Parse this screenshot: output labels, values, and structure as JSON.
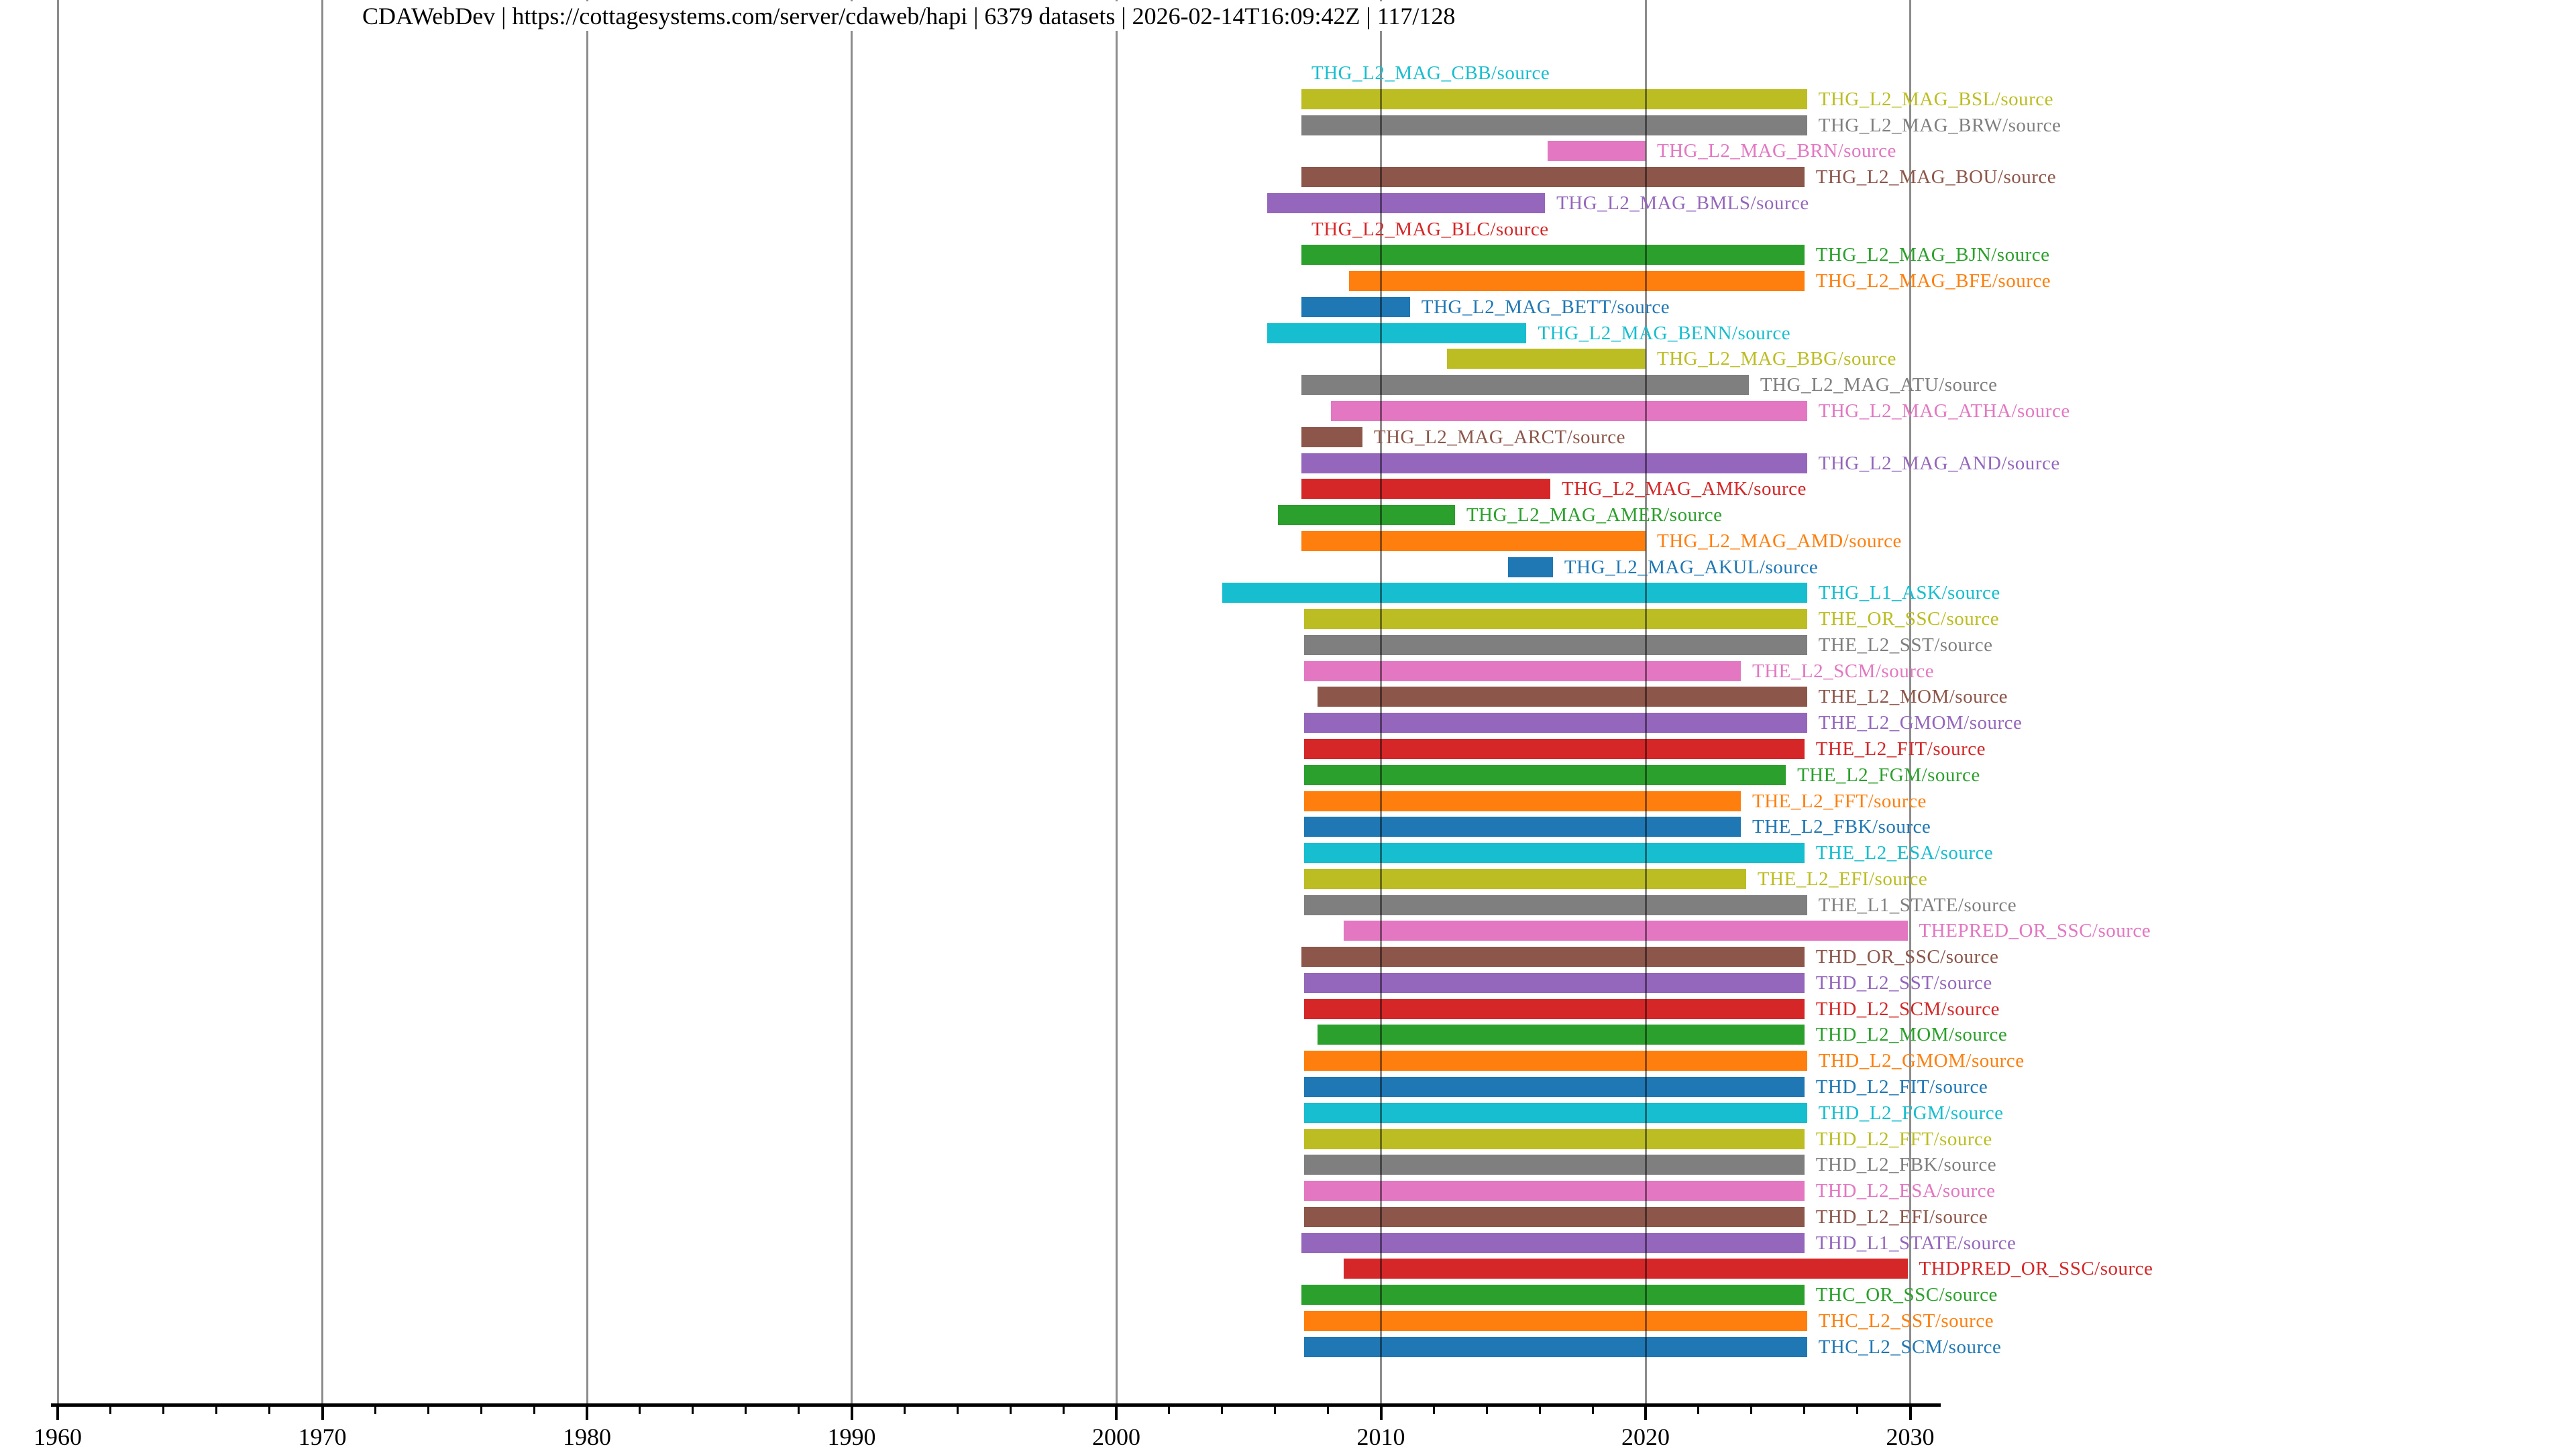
{
  "header": {
    "title": "CDAWebDev | https://cottagesystems.com/server/cdaweb/hapi | 6379 datasets | 2026-02-14T16:09:42Z | 117/128",
    "server_name": "CDAWebDev",
    "server_url": "https://cottagesystems.com/server/cdaweb/hapi",
    "dataset_count_text": "6379 datasets",
    "timestamp": "2026-02-14T16:09:42Z",
    "page_indicator": "117/128"
  },
  "chart_data": {
    "type": "bar",
    "subtype": "timeline-availability",
    "title": "CDAWebDev | https://cottagesystems.com/server/cdaweb/hapi | 6379 datasets | 2026-02-14T16:09:42Z | 117/128",
    "xlabel": "",
    "ylabel": "",
    "x_axis": {
      "min": 1958.8,
      "max": 2031.5,
      "major_ticks": [
        1960,
        1970,
        1980,
        1990,
        2000,
        2010,
        2020,
        2030
      ],
      "minor_tick_interval_years": 2,
      "grid": "decade-solid, 2yr-dotted"
    },
    "legend": "none",
    "palette": {
      "blue": "#1f77b4",
      "orange": "#ff7f0e",
      "green": "#2ca02c",
      "red": "#d62728",
      "purple": "#9467bd",
      "brown": "#8c564b",
      "pink": "#e377c2",
      "gray": "#7f7f7f",
      "olive": "#bcbd22",
      "cyan": "#17becf"
    },
    "rows": [
      {
        "label": "THG_L2_MAG_CBB/source",
        "color": "cyan",
        "start": null,
        "end": null
      },
      {
        "label": "THG_L2_MAG_BSL/source",
        "color": "olive",
        "start": 2007.0,
        "end": 2026.1
      },
      {
        "label": "THG_L2_MAG_BRW/source",
        "color": "gray",
        "start": 2007.0,
        "end": 2026.1
      },
      {
        "label": "THG_L2_MAG_BRN/source",
        "color": "pink",
        "start": 2016.3,
        "end": 2020.0
      },
      {
        "label": "THG_L2_MAG_BOU/source",
        "color": "brown",
        "start": 2007.0,
        "end": 2026.0
      },
      {
        "label": "THG_L2_MAG_BMLS/source",
        "color": "purple",
        "start": 2005.7,
        "end": 2016.2
      },
      {
        "label": "THG_L2_MAG_BLC/source",
        "color": "red",
        "start": null,
        "end": null
      },
      {
        "label": "THG_L2_MAG_BJN/source",
        "color": "green",
        "start": 2007.0,
        "end": 2026.0
      },
      {
        "label": "THG_L2_MAG_BFE/source",
        "color": "orange",
        "start": 2008.8,
        "end": 2026.0
      },
      {
        "label": "THG_L2_MAG_BETT/source",
        "color": "blue",
        "start": 2007.0,
        "end": 2011.1
      },
      {
        "label": "THG_L2_MAG_BENN/source",
        "color": "cyan",
        "start": 2005.7,
        "end": 2015.5
      },
      {
        "label": "THG_L2_MAG_BBG/source",
        "color": "olive",
        "start": 2012.5,
        "end": 2020.0
      },
      {
        "label": "THG_L2_MAG_ATU/source",
        "color": "gray",
        "start": 2007.0,
        "end": 2023.9
      },
      {
        "label": "THG_L2_MAG_ATHA/source",
        "color": "pink",
        "start": 2008.1,
        "end": 2026.1
      },
      {
        "label": "THG_L2_MAG_ARCT/source",
        "color": "brown",
        "start": 2007.0,
        "end": 2009.3
      },
      {
        "label": "THG_L2_MAG_AND/source",
        "color": "purple",
        "start": 2007.0,
        "end": 2026.1
      },
      {
        "label": "THG_L2_MAG_AMK/source",
        "color": "red",
        "start": 2007.0,
        "end": 2016.4
      },
      {
        "label": "THG_L2_MAG_AMER/source",
        "color": "green",
        "start": 2006.1,
        "end": 2012.8
      },
      {
        "label": "THG_L2_MAG_AMD/source",
        "color": "orange",
        "start": 2007.0,
        "end": 2020.0
      },
      {
        "label": "THG_L2_MAG_AKUL/source",
        "color": "blue",
        "start": 2014.8,
        "end": 2016.5
      },
      {
        "label": "THG_L1_ASK/source",
        "color": "cyan",
        "start": 2004.0,
        "end": 2026.1
      },
      {
        "label": "THE_OR_SSC/source",
        "color": "olive",
        "start": 2007.1,
        "end": 2026.1
      },
      {
        "label": "THE_L2_SST/source",
        "color": "gray",
        "start": 2007.1,
        "end": 2026.1
      },
      {
        "label": "THE_L2_SCM/source",
        "color": "pink",
        "start": 2007.1,
        "end": 2023.6
      },
      {
        "label": "THE_L2_MOM/source",
        "color": "brown",
        "start": 2007.6,
        "end": 2026.1
      },
      {
        "label": "THE_L2_GMOM/source",
        "color": "purple",
        "start": 2007.1,
        "end": 2026.1
      },
      {
        "label": "THE_L2_FIT/source",
        "color": "red",
        "start": 2007.1,
        "end": 2026.0
      },
      {
        "label": "THE_L2_FGM/source",
        "color": "green",
        "start": 2007.1,
        "end": 2025.3
      },
      {
        "label": "THE_L2_FFT/source",
        "color": "orange",
        "start": 2007.1,
        "end": 2023.6
      },
      {
        "label": "THE_L2_FBK/source",
        "color": "blue",
        "start": 2007.1,
        "end": 2023.6
      },
      {
        "label": "THE_L2_ESA/source",
        "color": "cyan",
        "start": 2007.1,
        "end": 2026.0
      },
      {
        "label": "THE_L2_EFI/source",
        "color": "olive",
        "start": 2007.1,
        "end": 2023.8
      },
      {
        "label": "THE_L1_STATE/source",
        "color": "gray",
        "start": 2007.1,
        "end": 2026.1
      },
      {
        "label": "THEPRED_OR_SSC/source",
        "color": "pink",
        "start": 2008.6,
        "end": 2029.9
      },
      {
        "label": "THD_OR_SSC/source",
        "color": "brown",
        "start": 2007.0,
        "end": 2026.0
      },
      {
        "label": "THD_L2_SST/source",
        "color": "purple",
        "start": 2007.1,
        "end": 2026.0
      },
      {
        "label": "THD_L2_SCM/source",
        "color": "red",
        "start": 2007.1,
        "end": 2026.0
      },
      {
        "label": "THD_L2_MOM/source",
        "color": "green",
        "start": 2007.6,
        "end": 2026.0
      },
      {
        "label": "THD_L2_GMOM/source",
        "color": "orange",
        "start": 2007.1,
        "end": 2026.1
      },
      {
        "label": "THD_L2_FIT/source",
        "color": "blue",
        "start": 2007.1,
        "end": 2026.0
      },
      {
        "label": "THD_L2_FGM/source",
        "color": "cyan",
        "start": 2007.1,
        "end": 2026.1
      },
      {
        "label": "THD_L2_FFT/source",
        "color": "olive",
        "start": 2007.1,
        "end": 2026.0
      },
      {
        "label": "THD_L2_FBK/source",
        "color": "gray",
        "start": 2007.1,
        "end": 2026.0
      },
      {
        "label": "THD_L2_ESA/source",
        "color": "pink",
        "start": 2007.1,
        "end": 2026.0
      },
      {
        "label": "THD_L2_EFI/source",
        "color": "brown",
        "start": 2007.1,
        "end": 2026.0
      },
      {
        "label": "THD_L1_STATE/source",
        "color": "purple",
        "start": 2007.0,
        "end": 2026.0
      },
      {
        "label": "THDPRED_OR_SSC/source",
        "color": "red",
        "start": 2008.6,
        "end": 2029.9
      },
      {
        "label": "THC_OR_SSC/source",
        "color": "green",
        "start": 2007.0,
        "end": 2026.0
      },
      {
        "label": "THC_L2_SST/source",
        "color": "orange",
        "start": 2007.1,
        "end": 2026.1
      },
      {
        "label": "THC_L2_SCM/source",
        "color": "blue",
        "start": 2007.1,
        "end": 2026.1
      }
    ]
  }
}
